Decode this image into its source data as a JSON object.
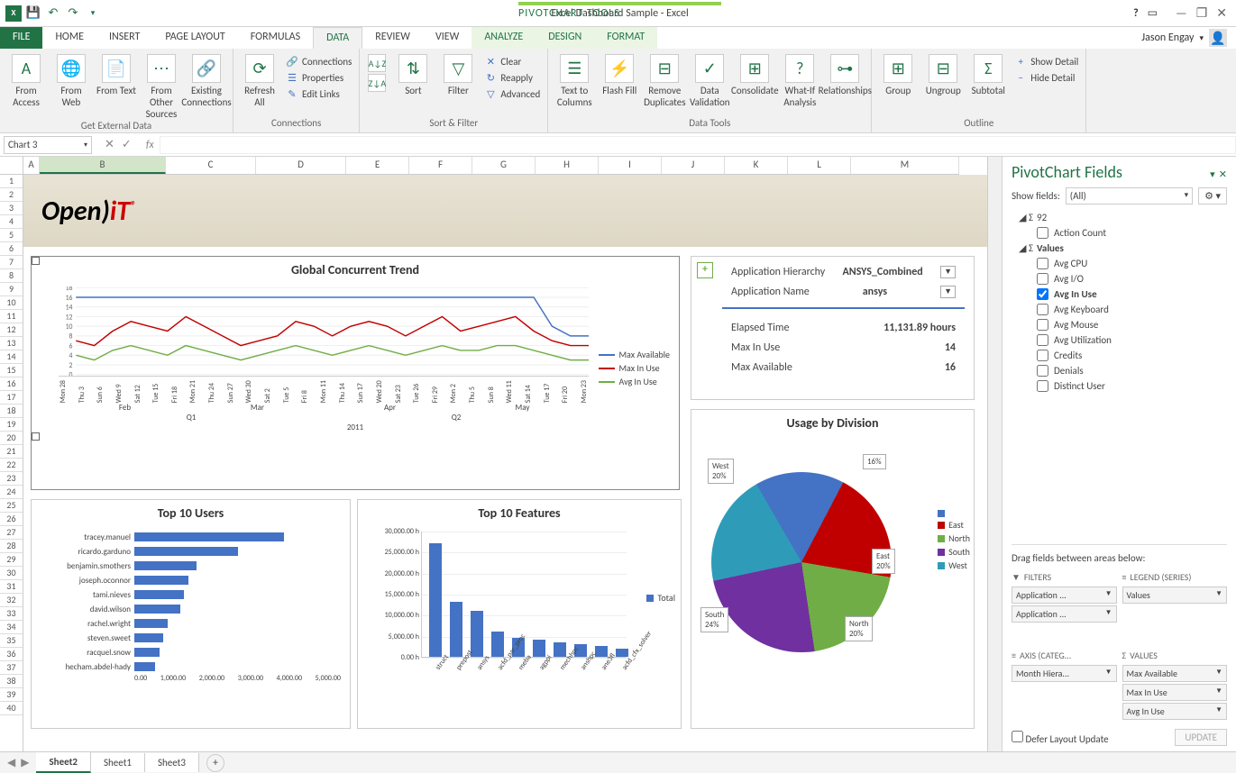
{
  "app": {
    "title": "Excel Dashboard Sample - Excel",
    "contextual_tools": "PIVOTCHART TOOLS",
    "user_name": "Jason Engay"
  },
  "qat": {
    "save_icon": "💾",
    "undo_icon": "↶",
    "redo_icon": "↷"
  },
  "ribbon_tabs": {
    "file": "FILE",
    "home": "HOME",
    "insert": "INSERT",
    "page_layout": "PAGE LAYOUT",
    "formulas": "FORMULAS",
    "data": "DATA",
    "review": "REVIEW",
    "view": "VIEW",
    "analyze": "ANALYZE",
    "design": "DESIGN",
    "format": "FORMAT"
  },
  "ribbon": {
    "get_external": {
      "label": "Get External Data",
      "from_access": "From Access",
      "from_web": "From Web",
      "from_text": "From Text",
      "from_other": "From Other Sources",
      "existing": "Existing Connections"
    },
    "connections": {
      "label": "Connections",
      "refresh": "Refresh All",
      "connections": "Connections",
      "properties": "Properties",
      "edit_links": "Edit Links"
    },
    "sort_filter": {
      "label": "Sort & Filter",
      "sort": "Sort",
      "filter": "Filter",
      "clear": "Clear",
      "reapply": "Reapply",
      "advanced": "Advanced"
    },
    "data_tools": {
      "label": "Data Tools",
      "text_to_cols": "Text to Columns",
      "flash_fill": "Flash Fill",
      "remove_dup": "Remove Duplicates",
      "validation": "Data Validation",
      "consolidate": "Consolidate",
      "whatif": "What-If Analysis",
      "relationships": "Relationships"
    },
    "outline": {
      "label": "Outline",
      "group": "Group",
      "ungroup": "Ungroup",
      "subtotal": "Subtotal",
      "show_detail": "Show Detail",
      "hide_detail": "Hide Detail"
    }
  },
  "name_box": "Chart 3",
  "columns": [
    "A",
    "B",
    "C",
    "D",
    "E",
    "F",
    "G",
    "H",
    "I",
    "J",
    "K",
    "L",
    "M"
  ],
  "dashboard": {
    "logo_main": "Open",
    "logo_it": "iT",
    "trend_chart": {
      "title": "Global Concurrent Trend",
      "ymax": 18,
      "ytick_step": 2,
      "legend": {
        "max_avail": "Max Available",
        "max_in_use": "Max In Use",
        "avg_in_use": "Avg In Use"
      },
      "colors": {
        "max_avail": "#4472c4",
        "max_in_use": "#c00000",
        "avg_in_use": "#70ad47"
      },
      "x_dates": [
        "Mon 28",
        "Thu 3",
        "Sun 6",
        "Wed 9",
        "Sat 12",
        "Tue 15",
        "Fri 18",
        "Mon 21",
        "Thu 24",
        "Sun 27",
        "Wed 30",
        "Sat 2",
        "Tue 5",
        "Fri 8",
        "Mon 11",
        "Thu 14",
        "Sun 17",
        "Wed 20",
        "Sat 23",
        "Tue 26",
        "Fri 29",
        "Mon 2",
        "Thu 5",
        "Sun 8",
        "Wed 11",
        "Sat 14",
        "Tue 17",
        "Fri 20",
        "Mon 23"
      ],
      "x_months": [
        "Feb",
        "Mar",
        "Apr",
        "May"
      ],
      "x_quarters": [
        "Q1",
        "Q2"
      ],
      "x_year": "2011",
      "max_avail_y": [
        16,
        16,
        16,
        16,
        16,
        16,
        16,
        16,
        16,
        16,
        16,
        16,
        16,
        16,
        16,
        16,
        16,
        16,
        16,
        16,
        16,
        16,
        16,
        16,
        16,
        16,
        10,
        8,
        8
      ],
      "max_in_use_y": [
        7,
        6,
        9,
        11,
        10,
        9,
        12,
        10,
        8,
        6,
        7,
        8,
        11,
        10,
        8,
        10,
        11,
        10,
        8,
        10,
        12,
        9,
        10,
        11,
        12,
        9,
        7,
        6,
        6
      ],
      "avg_in_use_y": [
        4,
        3,
        5,
        6,
        5,
        4,
        6,
        5,
        4,
        3,
        4,
        5,
        6,
        5,
        4,
        5,
        6,
        5,
        4,
        5,
        6,
        5,
        5,
        6,
        6,
        5,
        4,
        3,
        3
      ]
    },
    "users_chart": {
      "title": "Top 10 Users",
      "color": "#4472c4",
      "xmax": 5000,
      "xtick_step": 1000,
      "xticks": [
        "0.00",
        "1,000.00",
        "2,000.00",
        "3,000.00",
        "4,000.00",
        "5,000.00"
      ],
      "users": [
        "tracey.manuel",
        "ricardo.garduno",
        "benjamin.smothers",
        "joseph.oconnor",
        "tami.nieves",
        "david.wilson",
        "rachel.wright",
        "steven.sweet",
        "racquel.snow",
        "hecham.abdel-hady"
      ],
      "values": [
        3600,
        2500,
        1500,
        1300,
        1200,
        1100,
        800,
        700,
        600,
        500
      ]
    },
    "features_chart": {
      "title": "Top 10 Features",
      "color": "#4472c4",
      "legend_label": "Total",
      "ymax": 30000,
      "ytick_step": 5000,
      "yticks": [
        "0.00 h",
        "5,000.00 h",
        "10,000.00 h",
        "15,000.00 h",
        "20,000.00 h",
        "25,000.00 h",
        "30,000.00 h"
      ],
      "features": [
        "struct",
        "prepost",
        "ansys",
        "acfd_par_proc",
        "meba",
        "agppi",
        "mechhpc",
        "anshpc",
        "ane3fl",
        "acfd_cfx_solver"
      ],
      "values": [
        27000,
        13000,
        11000,
        6000,
        4500,
        4000,
        3500,
        3000,
        2500,
        2000
      ]
    },
    "info_panel": {
      "app_hierarchy_label": "Application Hierarchy",
      "app_hierarchy_val": "ANSYS_Combined",
      "app_name_label": "Application Name",
      "app_name_val": "ansys",
      "elapsed_label": "Elapsed Time",
      "elapsed_val": "11,131.89 hours",
      "max_in_use_label": "Max In Use",
      "max_in_use_val": "14",
      "max_avail_label": "Max Available",
      "max_avail_val": "16"
    },
    "pie_chart": {
      "title": "Usage by Division",
      "slices": [
        {
          "label": "16%",
          "legend": "",
          "pct": 16,
          "color": "#4472c4"
        },
        {
          "label": "East 20%",
          "legend": "East",
          "pct": 20,
          "color": "#c00000"
        },
        {
          "label": "North 20%",
          "legend": "North",
          "pct": 20,
          "color": "#70ad47"
        },
        {
          "label": "South 24%",
          "legend": "South",
          "pct": 24,
          "color": "#7030a0"
        },
        {
          "label": "West 20%",
          "legend": "West",
          "pct": 20,
          "color": "#2e9cb8"
        }
      ]
    }
  },
  "pane": {
    "title": "PivotChart Fields",
    "show_fields_label": "Show fields:",
    "show_fields_value": "(All)",
    "group_92": "92",
    "action_count": "Action Count",
    "values_header": "Values",
    "fields": [
      {
        "name": "Avg CPU",
        "checked": false
      },
      {
        "name": "Avg I/O",
        "checked": false
      },
      {
        "name": "Avg In Use",
        "checked": true
      },
      {
        "name": "Avg Keyboard",
        "checked": false
      },
      {
        "name": "Avg Mouse",
        "checked": false
      },
      {
        "name": "Avg Utilization",
        "checked": false
      },
      {
        "name": "Credits",
        "checked": false
      },
      {
        "name": "Denials",
        "checked": false
      },
      {
        "name": "Distinct User",
        "checked": false
      }
    ],
    "drag_label": "Drag fields between areas below:",
    "areas": {
      "filters": {
        "title": "FILTERS",
        "items": [
          "Application ...",
          "Application ..."
        ],
        "icon": "▼"
      },
      "legend": {
        "title": "LEGEND (SERIES)",
        "items": [
          "Values"
        ],
        "icon": "≡"
      },
      "axis": {
        "title": "AXIS (CATEG...",
        "items": [
          "Month Hiera..."
        ],
        "icon": "≡"
      },
      "values": {
        "title": "VALUES",
        "items": [
          "Max Available",
          "Max In Use",
          "Avg In Use"
        ],
        "icon": "Σ"
      }
    },
    "defer_label": "Defer Layout Update",
    "update_btn": "UPDATE"
  },
  "sheets": {
    "s1": "Sheet2",
    "s2": "Sheet1",
    "s3": "Sheet3"
  }
}
